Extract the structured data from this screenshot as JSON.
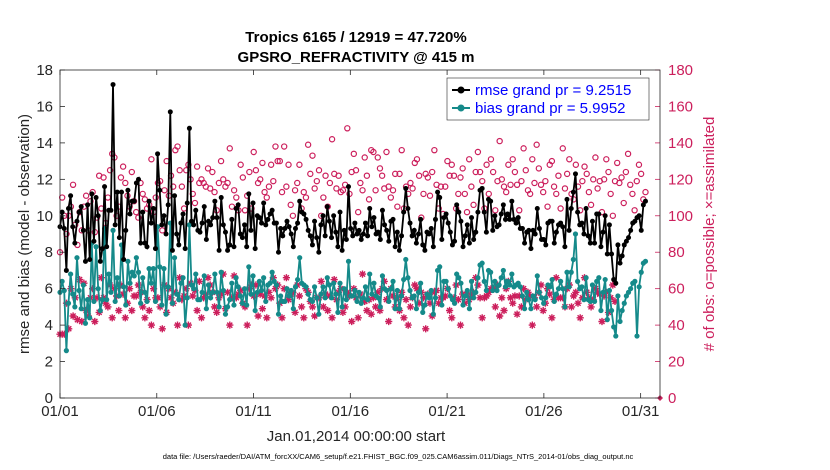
{
  "chart_data": {
    "type": "line",
    "title_line1": "Tropics 6165 / 12919 = 47.720%",
    "title_line2": "GPSRO_REFRACTIVITY @ 415 m",
    "xlabel": "Jan.01,2014 00:00:00 start",
    "ylabel_left": "rmse and bias (model - observation)",
    "ylabel_right": "# of obs: o=possible; ×=assimilated",
    "footnote": "data file: /Users/raeder/DAI/ATM_forcXX/CAM6_setup/f.e21.FHIST_BGC.f09_025.CAM6assim.011/Diags_NTrS_2014-01/obs_diag_output.nc",
    "xlim": [
      1,
      32
    ],
    "ylim_left": [
      0,
      18
    ],
    "ylim_right": [
      0,
      180
    ],
    "x_ticks": [
      1,
      6,
      11,
      16,
      21,
      26,
      31
    ],
    "x_tick_labels": [
      "01/01",
      "01/06",
      "01/11",
      "01/16",
      "01/21",
      "01/26",
      "01/31"
    ],
    "y_ticks_left": [
      "0",
      "2",
      "4",
      "6",
      "8",
      "10",
      "12",
      "14",
      "16",
      "18"
    ],
    "y_ticks_right": [
      "0",
      "20",
      "40",
      "60",
      "80",
      "100",
      "120",
      "140",
      "160",
      "180"
    ],
    "colors": {
      "rmse": "#000000",
      "bias": "#158a8a",
      "obs": "#cc1f5c",
      "legend_text": "#0000ff",
      "box": "#262626"
    },
    "series": [
      {
        "name": "rmse grand pr = 9.2515",
        "axis": "left",
        "marker": "star",
        "values": [
          9.4,
          10.2,
          9.3,
          7.0,
          10.4,
          11.1,
          9.4,
          8.5,
          9.7,
          10.2,
          10.5,
          9.2,
          7.5,
          10.6,
          7.6,
          11.2,
          8.6,
          11.0,
          10.0,
          7.5,
          8.2,
          11.6,
          8.3,
          10.3,
          10.3,
          17.2,
          9.5,
          11.3,
          8.8,
          11.3,
          7.6,
          9.2,
          11.4,
          10.1,
          10.8,
          10.8,
          11.8,
          12.0,
          8.5,
          10.2,
          8.5,
          8.3,
          10.8,
          9.6,
          10.4,
          8.2,
          13.4,
          11.4,
          9.5,
          10.0,
          9.0,
          10.6,
          15.7,
          8.1,
          11.1,
          9.0,
          8.4,
          9.6,
          10.1,
          8.2,
          10.7,
          14.8,
          9.7,
          9.5,
          10.3,
          9.2,
          9.1,
          9.6,
          10.5,
          8.7,
          9.7,
          9.5,
          9.9,
          10.8,
          9.9,
          8.1,
          11.0,
          9.5,
          9.1,
          8.1,
          8.4,
          9.8,
          8.3,
          10.4,
          10.6,
          9.0,
          8.8,
          9.5,
          8.3,
          11.2,
          9.2,
          10.7,
          8.2,
          10.0,
          9.9,
          9.6,
          10.7,
          9.5,
          9.8,
          10.1,
          10.3,
          9.6,
          9.6,
          8.0,
          9.3,
          8.9,
          9.3,
          9.7,
          9.4,
          9.0,
          8.3,
          9.3,
          9.6,
          10.8,
          10.2,
          10.1,
          9.8,
          9.2,
          8.9,
          8.4,
          9.7,
          8.8,
          8.0,
          9.5,
          10.0,
          8.9,
          10.5,
          9.7,
          8.8,
          10.0,
          9.1,
          8.3,
          10.2,
          8.1,
          9.2,
          8.7,
          11.6,
          9.3,
          8.9,
          9.6,
          9.0,
          9.2,
          8.7,
          9.0,
          9.6,
          8.9,
          10.4,
          9.4,
          9.9,
          9.0,
          9.1,
          8.7,
          10.3,
          9.5,
          9.2,
          8.6,
          9.7,
          9.8,
          8.3,
          9.1,
          8.1,
          8.9,
          10.2,
          11.5,
          10.4,
          9.6,
          8.9,
          9.2,
          8.5,
          9.0,
          9.8,
          8.4,
          8.1,
          9.1,
          9.0,
          9.3,
          8.3,
          9.8,
          11.3,
          11.0,
          8.7,
          9.9,
          10.1,
          9.6,
          9.1,
          8.4,
          8.6,
          10.6,
          10.2,
          9.7,
          8.3,
          8.9,
          9.5,
          8.5,
          9.9,
          8.7,
          9.1,
          10.2,
          11.4,
          11.5,
          10.2,
          9.1,
          10.9,
          10.8,
          9.2,
          10.0,
          9.4,
          9.5,
          10.1,
          10.6,
          9.8,
          10.1,
          9.8,
          10.8,
          9.8,
          9.6,
          9.9,
          9.3,
          9.3,
          8.5,
          9.1,
          9.2,
          8.2,
          9.2,
          9.0,
          10.4,
          9.3,
          8.7,
          8.7,
          8.4,
          9.6,
          9.7,
          9.7,
          8.5,
          9.1,
          9.5,
          9.6,
          9.4,
          8.3,
          10.9,
          9.2,
          10.4,
          11.3,
          12.3,
          10.2,
          9.5,
          9.6,
          9.0,
          10.4,
          8.9,
          8.5,
          9.7,
          8.5,
          10.1,
          10.1,
          8.3,
          9.1,
          10.0,
          7.9,
          9.5,
          7.9,
          6.5,
          6.3,
          8.4,
          7.4,
          7.8,
          8.4,
          8.6,
          8.8,
          9.2,
          9.6,
          9.7,
          9.9,
          10.0,
          9.2,
          10.6,
          10.8
        ]
      },
      {
        "name": "bias grand pr = 5.9952",
        "axis": "left",
        "marker": "dot",
        "values": [
          5.8,
          6.4,
          5.9,
          2.6,
          5.2,
          6.8,
          5.7,
          5.0,
          7.7,
          5.9,
          4.9,
          6.2,
          4.1,
          5.4,
          4.4,
          8.5,
          5.3,
          8.3,
          6.0,
          4.8,
          5.4,
          9.3,
          5.4,
          6.8,
          5.8,
          9.2,
          5.3,
          6.6,
          5.6,
          8.4,
          6.1,
          5.1,
          7.5,
          6.3,
          6.9,
          6.7,
          7.7,
          6.9,
          5.2,
          6.6,
          5.8,
          5.3,
          7.1,
          6.3,
          7.1,
          5.3,
          9.4,
          7.2,
          5.1,
          7.1,
          4.6,
          6.1,
          9.6,
          5.2,
          7.7,
          5.7,
          5.4,
          6.3,
          6.6,
          4.0,
          5.5,
          9.5,
          6.2,
          6.0,
          6.8,
          5.4,
          5.4,
          5.8,
          6.7,
          4.9,
          6.2,
          5.5,
          5.8,
          6.8,
          5.8,
          5.0,
          6.9,
          5.9,
          4.6,
          5.0,
          5.4,
          6.3,
          5.1,
          6.6,
          6.1,
          5.6,
          5.2,
          6.0,
          5.1,
          7.2,
          5.7,
          6.7,
          4.8,
          5.8,
          6.4,
          5.9,
          6.6,
          5.3,
          6.2,
          6.3,
          6.9,
          6.4,
          6.2,
          4.6,
          5.6,
          5.3,
          5.3,
          6.0,
          5.6,
          5.9,
          4.9,
          6.1,
          6.5,
          7.7,
          6.3,
          6.2,
          6.1,
          5.7,
          5.4,
          5.3,
          6.1,
          5.5,
          4.6,
          5.7,
          6.1,
          5.5,
          6.6,
          6.2,
          5.5,
          6.3,
          5.7,
          4.7,
          6.3,
          5.0,
          6.0,
          5.4,
          7.5,
          5.6,
          5.6,
          5.9,
          5.3,
          5.8,
          5.2,
          5.5,
          6.1,
          5.4,
          6.8,
          5.7,
          6.3,
          5.6,
          5.5,
          5.0,
          6.7,
          6.0,
          5.9,
          5.3,
          6.0,
          6.4,
          4.9,
          5.9,
          4.9,
          5.6,
          6.5,
          7.6,
          6.6,
          5.9,
          5.5,
          5.6,
          4.9,
          5.8,
          6.3,
          4.7,
          5.1,
          5.7,
          5.5,
          5.9,
          4.6,
          5.5,
          7.0,
          7.2,
          5.1,
          6.4,
          6.4,
          6.0,
          5.6,
          5.4,
          5.2,
          6.8,
          6.6,
          6.3,
          5.1,
          5.6,
          5.9,
          4.9,
          6.4,
          5.5,
          5.8,
          6.6,
          7.3,
          7.4,
          6.4,
          5.9,
          7.0,
          6.9,
          5.9,
          6.4,
          5.9,
          6.2,
          6.6,
          7.0,
          6.1,
          6.4,
          6.2,
          6.8,
          6.1,
          6.2,
          6.3,
          6.1,
          5.6,
          4.9,
          5.8,
          5.4,
          4.9,
          5.6,
          5.4,
          6.7,
          5.8,
          5.5,
          5.2,
          5.5,
          6.2,
          6.1,
          6.5,
          5.3,
          5.7,
          6.0,
          6.4,
          6.0,
          5.0,
          6.9,
          6.1,
          6.9,
          7.6,
          9.0,
          6.4,
          6.0,
          6.1,
          5.4,
          6.6,
          5.4,
          5.3,
          6.2,
          5.3,
          6.4,
          6.6,
          4.8,
          5.8,
          6.5,
          4.3,
          5.9,
          4.8,
          3.9,
          3.4,
          5.6,
          4.2,
          4.8,
          5.2,
          5.6,
          5.8,
          6.0,
          6.3,
          6.4,
          3.4,
          6.1,
          6.9,
          7.4,
          7.5
        ]
      },
      {
        "name": "# of obs possible",
        "axis": "right",
        "marker": "circle",
        "values": [
          80,
          110,
          100,
          90,
          100,
          105,
          117,
          95,
          84,
          102,
          92,
          105,
          111,
          92,
          108,
          113,
          91,
          99,
          122,
          104,
          121,
          96,
          110,
          125,
          134,
          132,
          100,
          105,
          121,
          127,
          118,
          111,
          105,
          124,
          108,
          102,
          99,
          118,
          112,
          109,
          104,
          106,
          131,
          102,
          110,
          118,
          119,
          92,
          114,
          130,
          111,
          122,
          116,
          136,
          138,
          125,
          116,
          104,
          125,
          128,
          120,
          112,
          107,
          127,
          118,
          120,
          118,
          116,
          126,
          115,
          124,
          113,
          103,
          118,
          130,
          120,
          116,
          118,
          137,
          105,
          114,
          110,
          103,
          128,
          121,
          103,
          111,
          124,
          104,
          135,
          125,
          118,
          120,
          129,
          113,
          110,
          116,
          128,
          119,
          138,
          130,
          130,
          113,
          138,
          116,
          128,
          106,
          100,
          114,
          118,
          128,
          104,
          113,
          110,
          139,
          123,
          133,
          115,
          119,
          125,
          100,
          110,
          122,
          105,
          118,
          142,
          123,
          115,
          122,
          113,
          114,
          117,
          148,
          112,
          124,
          134,
          125,
          102,
          118,
          114,
          132,
          122,
          109,
          136,
          135,
          114,
          132,
          126,
          122,
          115,
          135,
          116,
          110,
          114,
          123,
          105,
          123,
          136,
          104,
          116,
          112,
          118,
          115,
          129,
          131,
          122,
          99,
          112,
          123,
          121,
          111,
          124,
          136,
          117,
          104,
          116,
          101,
          116,
          130,
          122,
          128,
          122,
          104,
          112,
          121,
          126,
          112,
          102,
          131,
          116,
          106,
          124,
          135,
          124,
          119,
          104,
          128,
          112,
          131,
          124,
          103,
          119,
          141,
          120,
          116,
          113,
          128,
          117,
          131,
          124,
          117,
          103,
          119,
          137,
          125,
          114,
          112,
          131,
          118,
          139,
          126,
          117,
          113,
          119,
          105,
          128,
          130,
          116,
          112,
          122,
          104,
          137,
          115,
          123,
          131,
          112,
          109,
          128,
          116,
          103,
          119,
          127,
          123,
          113,
          106,
          120,
          132,
          115,
          119,
          102,
          120,
          131,
          124,
          112,
          100,
          119,
          129,
          118,
          121,
          107,
          124,
          134,
          117,
          112,
          103,
          119,
          128,
          123,
          109,
          113
        ]
      },
      {
        "name": "# of obs assimilated",
        "axis": "right",
        "marker": "x",
        "values": [
          35,
          35,
          35,
          52,
          38,
          60,
          45,
          55,
          43,
          65,
          42,
          63,
          48,
          45,
          55,
          60,
          42,
          55,
          47,
          66,
          55,
          52,
          50,
          62,
          44,
          60,
          56,
          48,
          62,
          57,
          44,
          52,
          60,
          48,
          56,
          56,
          62,
          58,
          50,
          44,
          54,
          48,
          40,
          60,
          55,
          55,
          50,
          38,
          62,
          47,
          60,
          55,
          52,
          58,
          40,
          66,
          54,
          56,
          60,
          40,
          63,
          56,
          59,
          48,
          64,
          44,
          55,
          57,
          66,
          62,
          58,
          50,
          47,
          55,
          57,
          68,
          49,
          58,
          40,
          55,
          67,
          55,
          57,
          59,
          52,
          50,
          40,
          60,
          62,
          56,
          62,
          45,
          57,
          49,
          56,
          44,
          58,
          55,
          66,
          60,
          62,
          52,
          44,
          60,
          66,
          54,
          57,
          58,
          47,
          62,
          56,
          50,
          44,
          60,
          58,
          53,
          50,
          45,
          55,
          55,
          64,
          50,
          57,
          48,
          56,
          44,
          65,
          54,
          58,
          60,
          47,
          50,
          58,
          56,
          42,
          60,
          55,
          44,
          57,
          68,
          53,
          48,
          54,
          46,
          55,
          50,
          58,
          48,
          60,
          64,
          54,
          42,
          60,
          56,
          50,
          55,
          48,
          58,
          44,
          54,
          40,
          50,
          55,
          62,
          60,
          52,
          58,
          55,
          38,
          57,
          52,
          45,
          58,
          59,
          52,
          55,
          55,
          56,
          60,
          48,
          44,
          55,
          62,
          54,
          40,
          57,
          52,
          57,
          54,
          56,
          58,
          66,
          62,
          55,
          44,
          55,
          56,
          58,
          60,
          60,
          50,
          62,
          45,
          55,
          48,
          60,
          64,
          55,
          52,
          56,
          46,
          56,
          50,
          60,
          54,
          58,
          56,
          40,
          55,
          50,
          58,
          62,
          48,
          52,
          60,
          57,
          44,
          54,
          66,
          55,
          55,
          55,
          50,
          60,
          62,
          50,
          56,
          58,
          52,
          44,
          55,
          66,
          58,
          55,
          50,
          54,
          60,
          58,
          57,
          42,
          56,
          58,
          47,
          55,
          62,
          53
        ]
      }
    ]
  }
}
